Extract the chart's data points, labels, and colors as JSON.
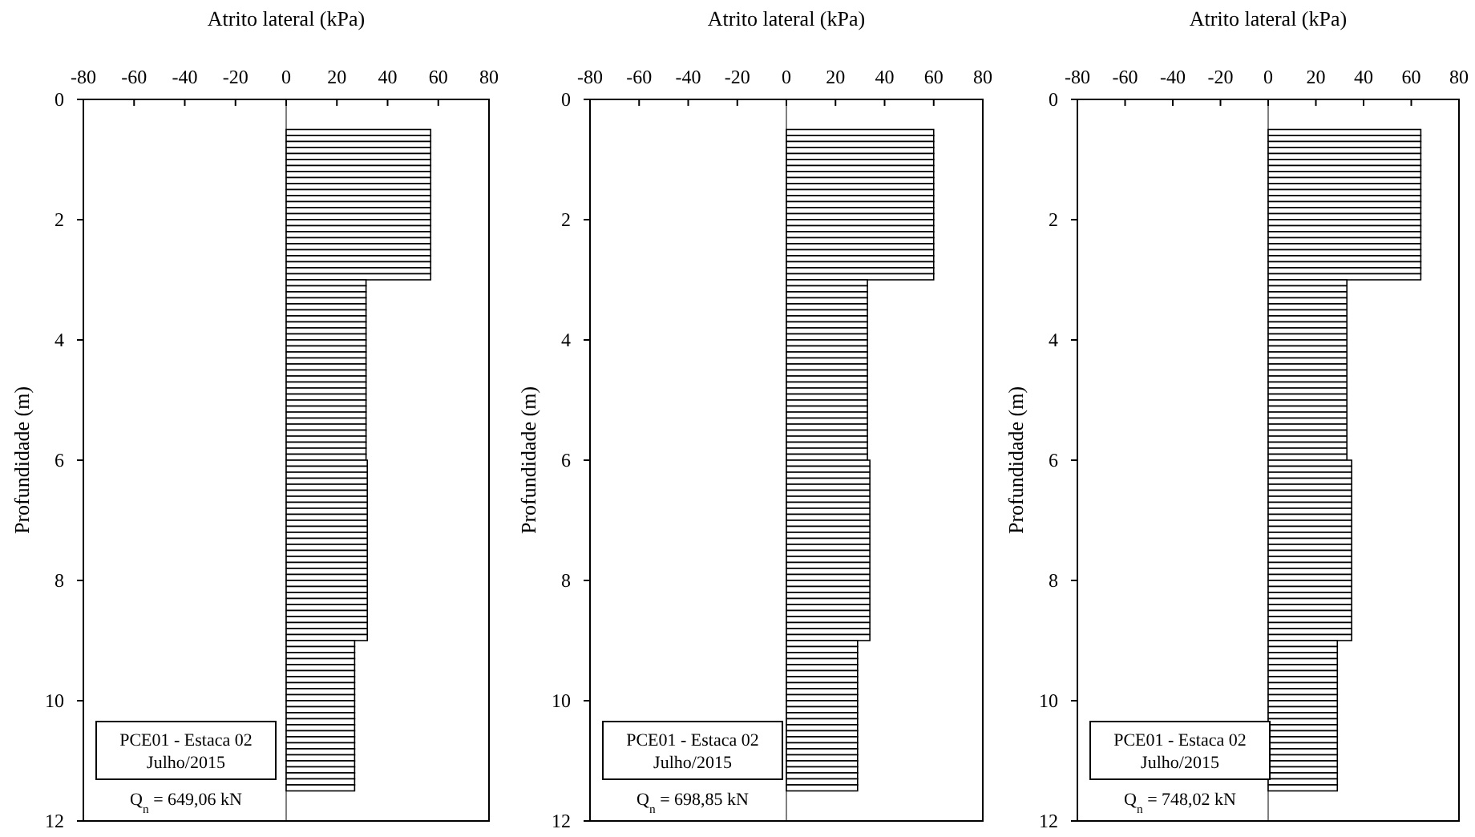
{
  "chart_data": [
    {
      "type": "bar",
      "orientation": "horizontal",
      "xlabel": "Atrito lateral (kPa)",
      "ylabel": "Profundidade (m)",
      "xlim": [
        -80,
        80
      ],
      "xticks": [
        -80,
        -60,
        -40,
        -20,
        0,
        20,
        40,
        60,
        80
      ],
      "ylim": [
        12,
        0
      ],
      "yticks": [
        0,
        2,
        4,
        6,
        8,
        10,
        12
      ],
      "grid": false,
      "ref_lines": [
        {
          "axis": "x",
          "value": 0,
          "color": "#808080"
        }
      ],
      "annotations": [
        "PCE01 - Estaca 02\nJulho/2015",
        "Q$_{n}$ = 649,06 kN"
      ],
      "x": [
        0.55,
        0.65,
        0.75,
        0.85,
        0.95,
        1.05,
        1.15,
        1.25,
        1.35,
        1.45,
        1.55,
        1.65,
        1.75,
        1.85,
        1.95,
        2.05,
        2.15,
        2.25,
        2.35,
        2.45,
        2.55,
        2.65,
        2.75,
        2.85,
        2.95,
        3.05,
        3.15,
        3.25,
        3.35,
        3.45,
        3.55,
        3.65,
        3.75,
        3.85,
        3.95,
        4.05,
        4.15,
        4.25,
        4.35,
        4.45,
        4.55,
        4.65,
        4.75,
        4.85,
        4.95,
        5.05,
        5.15,
        5.25,
        5.35,
        5.45,
        5.55,
        5.65,
        5.75,
        5.85,
        5.95,
        6.05,
        6.15,
        6.25,
        6.35,
        6.45,
        6.55,
        6.65,
        6.75,
        6.85,
        6.95,
        7.05,
        7.15,
        7.25,
        7.35,
        7.45,
        7.55,
        7.65,
        7.75,
        7.85,
        7.95,
        8.05,
        8.15,
        8.25,
        8.35,
        8.45,
        8.55,
        8.65,
        8.75,
        8.85,
        8.95,
        9.05,
        9.15,
        9.25,
        9.35,
        9.45,
        9.55,
        9.65,
        9.75,
        9.85,
        9.95,
        10.05,
        10.15,
        10.25,
        10.35,
        10.45,
        10.55,
        10.65,
        10.75,
        10.85,
        10.95,
        11.05,
        11.15,
        11.25,
        11.35,
        11.45
      ],
      "series": [
        {
          "color": "#000000",
          "values": [
            57,
            57,
            57,
            57,
            57,
            57,
            57,
            57,
            57,
            57,
            57,
            57,
            57,
            57,
            57,
            57,
            57,
            57,
            57,
            57,
            57,
            57,
            57,
            57,
            57,
            31.5,
            31.5,
            31.5,
            31.5,
            31.5,
            31.5,
            31.5,
            31.5,
            31.5,
            31.5,
            31.5,
            31.5,
            31.5,
            31.5,
            31.5,
            31.5,
            31.5,
            31.5,
            31.5,
            31.5,
            31.5,
            31.5,
            31.5,
            31.5,
            31.5,
            31.5,
            31.5,
            31.5,
            31.5,
            31.5,
            32,
            32,
            32,
            32,
            32,
            32,
            32,
            32,
            32,
            32,
            32,
            32,
            32,
            32,
            32,
            32,
            32,
            32,
            32,
            32,
            32,
            32,
            32,
            32,
            32,
            32,
            32,
            32,
            32,
            32,
            27,
            27,
            27,
            27,
            27,
            27,
            27,
            27,
            27,
            27,
            27,
            27,
            27,
            27,
            27,
            27,
            27,
            27,
            27,
            27,
            27,
            27,
            27,
            27,
            27
          ]
        }
      ]
    },
    {
      "type": "bar",
      "orientation": "horizontal",
      "xlabel": "Atrito lateral (kPa)",
      "ylabel": "Profundidade (m)",
      "xlim": [
        -80,
        80
      ],
      "xticks": [
        -80,
        -60,
        -40,
        -20,
        0,
        20,
        40,
        60,
        80
      ],
      "ylim": [
        12,
        0
      ],
      "yticks": [
        0,
        2,
        4,
        6,
        8,
        10,
        12
      ],
      "grid": false,
      "ref_lines": [
        {
          "axis": "x",
          "value": 0,
          "color": "#808080"
        }
      ],
      "annotations": [
        "PCE01 - Estaca 02\nJulho/2015",
        "Q$_{n}$ = 698,85 kN"
      ],
      "x": [
        0.55,
        0.65,
        0.75,
        0.85,
        0.95,
        1.05,
        1.15,
        1.25,
        1.35,
        1.45,
        1.55,
        1.65,
        1.75,
        1.85,
        1.95,
        2.05,
        2.15,
        2.25,
        2.35,
        2.45,
        2.55,
        2.65,
        2.75,
        2.85,
        2.95,
        3.05,
        3.15,
        3.25,
        3.35,
        3.45,
        3.55,
        3.65,
        3.75,
        3.85,
        3.95,
        4.05,
        4.15,
        4.25,
        4.35,
        4.45,
        4.55,
        4.65,
        4.75,
        4.85,
        4.95,
        5.05,
        5.15,
        5.25,
        5.35,
        5.45,
        5.55,
        5.65,
        5.75,
        5.85,
        5.95,
        6.05,
        6.15,
        6.25,
        6.35,
        6.45,
        6.55,
        6.65,
        6.75,
        6.85,
        6.95,
        7.05,
        7.15,
        7.25,
        7.35,
        7.45,
        7.55,
        7.65,
        7.75,
        7.85,
        7.95,
        8.05,
        8.15,
        8.25,
        8.35,
        8.45,
        8.55,
        8.65,
        8.75,
        8.85,
        8.95,
        9.05,
        9.15,
        9.25,
        9.35,
        9.45,
        9.55,
        9.65,
        9.75,
        9.85,
        9.95,
        10.05,
        10.15,
        10.25,
        10.35,
        10.45,
        10.55,
        10.65,
        10.75,
        10.85,
        10.95,
        11.05,
        11.15,
        11.25,
        11.35,
        11.45
      ],
      "series": [
        {
          "color": "#000000",
          "values": [
            60,
            60,
            60,
            60,
            60,
            60,
            60,
            60,
            60,
            60,
            60,
            60,
            60,
            60,
            60,
            60,
            60,
            60,
            60,
            60,
            60,
            60,
            60,
            60,
            60,
            33,
            33,
            33,
            33,
            33,
            33,
            33,
            33,
            33,
            33,
            33,
            33,
            33,
            33,
            33,
            33,
            33,
            33,
            33,
            33,
            33,
            33,
            33,
            33,
            33,
            33,
            33,
            33,
            33,
            33,
            34,
            34,
            34,
            34,
            34,
            34,
            34,
            34,
            34,
            34,
            34,
            34,
            34,
            34,
            34,
            34,
            34,
            34,
            34,
            34,
            34,
            34,
            34,
            34,
            34,
            34,
            34,
            34,
            34,
            34,
            29,
            29,
            29,
            29,
            29,
            29,
            29,
            29,
            29,
            29,
            29,
            29,
            29,
            29,
            29,
            29,
            29,
            29,
            29,
            29,
            29,
            29,
            29,
            29,
            29
          ]
        }
      ]
    },
    {
      "type": "bar",
      "orientation": "horizontal",
      "xlabel": "Atrito lateral (kPa)",
      "ylabel": "Profundidade (m)",
      "xlim": [
        -80,
        80
      ],
      "xticks": [
        -80,
        -60,
        -40,
        -20,
        0,
        20,
        40,
        60,
        80
      ],
      "ylim": [
        12,
        0
      ],
      "yticks": [
        0,
        2,
        4,
        6,
        8,
        10,
        12
      ],
      "grid": false,
      "ref_lines": [
        {
          "axis": "x",
          "value": 0,
          "color": "#808080"
        }
      ],
      "annotations": [
        "PCE01 - Estaca 02\nJulho/2015",
        "Q$_{n}$ = 748,02 kN"
      ],
      "x": [
        0.55,
        0.65,
        0.75,
        0.85,
        0.95,
        1.05,
        1.15,
        1.25,
        1.35,
        1.45,
        1.55,
        1.65,
        1.75,
        1.85,
        1.95,
        2.05,
        2.15,
        2.25,
        2.35,
        2.45,
        2.55,
        2.65,
        2.75,
        2.85,
        2.95,
        3.05,
        3.15,
        3.25,
        3.35,
        3.45,
        3.55,
        3.65,
        3.75,
        3.85,
        3.95,
        4.05,
        4.15,
        4.25,
        4.35,
        4.45,
        4.55,
        4.65,
        4.75,
        4.85,
        4.95,
        5.05,
        5.15,
        5.25,
        5.35,
        5.45,
        5.55,
        5.65,
        5.75,
        5.85,
        5.95,
        6.05,
        6.15,
        6.25,
        6.35,
        6.45,
        6.55,
        6.65,
        6.75,
        6.85,
        6.95,
        7.05,
        7.15,
        7.25,
        7.35,
        7.45,
        7.55,
        7.65,
        7.75,
        7.85,
        7.95,
        8.05,
        8.15,
        8.25,
        8.35,
        8.45,
        8.55,
        8.65,
        8.75,
        8.85,
        8.95,
        9.05,
        9.15,
        9.25,
        9.35,
        9.45,
        9.55,
        9.65,
        9.75,
        9.85,
        9.95,
        10.05,
        10.15,
        10.25,
        10.35,
        10.45,
        10.55,
        10.65,
        10.75,
        10.85,
        10.95,
        11.05,
        11.15,
        11.25,
        11.35,
        11.45
      ],
      "series": [
        {
          "color": "#000000",
          "values": [
            64,
            64,
            64,
            64,
            64,
            64,
            64,
            64,
            64,
            64,
            64,
            64,
            64,
            64,
            64,
            64,
            64,
            64,
            64,
            64,
            64,
            64,
            64,
            64,
            64,
            33,
            33,
            33,
            33,
            33,
            33,
            33,
            33,
            33,
            33,
            33,
            33,
            33,
            33,
            33,
            33,
            33,
            33,
            33,
            33,
            33,
            33,
            33,
            33,
            33,
            33,
            33,
            33,
            33,
            33,
            35,
            35,
            35,
            35,
            35,
            35,
            35,
            35,
            35,
            35,
            35,
            35,
            35,
            35,
            35,
            35,
            35,
            35,
            35,
            35,
            35,
            35,
            35,
            35,
            35,
            35,
            35,
            35,
            35,
            35,
            29,
            29,
            29,
            29,
            29,
            29,
            29,
            29,
            29,
            29,
            29,
            29,
            29,
            29,
            29,
            29,
            29,
            29,
            29,
            29,
            29,
            29,
            29,
            29,
            29
          ]
        }
      ]
    }
  ]
}
